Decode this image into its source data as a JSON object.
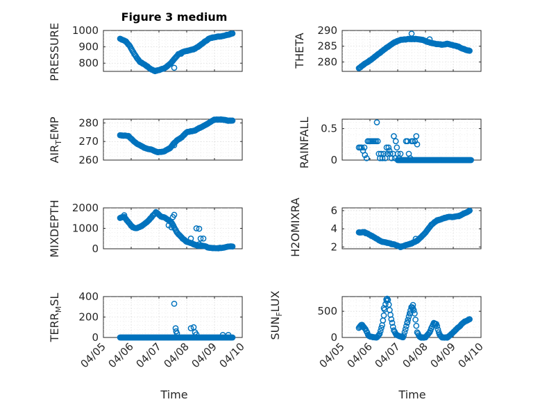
{
  "colors": {
    "marker": "#0072BD",
    "axes": "#262626",
    "grid": "#c8c8c8",
    "background": "#ffffff"
  },
  "chart_data": {
    "type": "scatter",
    "title": "Figure 3 medium",
    "subplot_grid": [
      4,
      2
    ],
    "grid": "on (major and minor, dotted)",
    "marker": "circle",
    "x_axis": {
      "label": "Time",
      "tick_labels": [
        "04/05",
        "04/06",
        "04/07",
        "04/08",
        "04/09",
        "04/10"
      ],
      "tick_values_days": [
        5,
        6,
        7,
        8,
        9,
        10
      ],
      "range_days": [
        5,
        10
      ]
    },
    "panels": [
      {
        "ylabel": "PRESSURE",
        "ylim": [
          750,
          1000
        ],
        "yticks": [
          800,
          900,
          1000
        ],
        "anchors": [
          [
            5.6,
            950
          ],
          [
            5.8,
            935
          ],
          [
            5.95,
            905
          ],
          [
            6.1,
            860
          ],
          [
            6.3,
            810
          ],
          [
            6.5,
            790
          ],
          [
            6.7,
            765
          ],
          [
            6.85,
            752
          ],
          [
            7.0,
            758
          ],
          [
            7.2,
            770
          ],
          [
            7.4,
            795
          ],
          [
            7.55,
            825
          ],
          [
            7.7,
            855
          ],
          [
            7.9,
            870
          ],
          [
            8.1,
            880
          ],
          [
            8.25,
            885
          ],
          [
            8.45,
            905
          ],
          [
            8.6,
            925
          ],
          [
            8.8,
            950
          ],
          [
            9.0,
            960
          ],
          [
            9.25,
            965
          ],
          [
            9.5,
            975
          ],
          [
            9.65,
            983
          ]
        ],
        "outliers": [
          [
            7.55,
            772
          ],
          [
            7.8,
            858
          ]
        ]
      },
      {
        "ylabel": "THETA",
        "ylim": [
          277,
          290
        ],
        "yticks": [
          280,
          285,
          290
        ],
        "anchors": [
          [
            5.6,
            278
          ],
          [
            5.8,
            279.3
          ],
          [
            6.0,
            280.5
          ],
          [
            6.3,
            282.5
          ],
          [
            6.6,
            284.5
          ],
          [
            6.9,
            286.3
          ],
          [
            7.1,
            287
          ],
          [
            7.4,
            287.3
          ],
          [
            7.7,
            287.3
          ],
          [
            7.9,
            287
          ],
          [
            8.1,
            286.3
          ],
          [
            8.35,
            285.8
          ],
          [
            8.6,
            285.5
          ],
          [
            8.8,
            285.8
          ],
          [
            9.0,
            285.3
          ],
          [
            9.2,
            284.8
          ],
          [
            9.4,
            284
          ],
          [
            9.6,
            283.5
          ]
        ],
        "outliers": [
          [
            7.5,
            289
          ],
          [
            8.15,
            287.2
          ]
        ]
      },
      {
        "ylabel": "AIR_TEMP",
        "ylim": [
          260,
          282
        ],
        "yticks": [
          260,
          270,
          280
        ],
        "anchors": [
          [
            5.6,
            273.3
          ],
          [
            5.9,
            273
          ],
          [
            6.1,
            270
          ],
          [
            6.3,
            268
          ],
          [
            6.5,
            266.5
          ],
          [
            6.75,
            265.5
          ],
          [
            6.95,
            264.3
          ],
          [
            7.15,
            264.5
          ],
          [
            7.4,
            266.5
          ],
          [
            7.6,
            270
          ],
          [
            7.8,
            272
          ],
          [
            8.0,
            275
          ],
          [
            8.3,
            276
          ],
          [
            8.55,
            278
          ],
          [
            8.8,
            280
          ],
          [
            9.0,
            281.8
          ],
          [
            9.3,
            281.8
          ],
          [
            9.5,
            281.2
          ],
          [
            9.65,
            281.3
          ]
        ],
        "outliers": [
          [
            7.55,
            268
          ]
        ]
      },
      {
        "ylabel": "RAINFALL",
        "ylim": [
          0,
          0.65
        ],
        "yticks": [
          0,
          0.5
        ],
        "series_samples": [
          [
            5.6,
            0.2
          ],
          [
            5.65,
            0.2
          ],
          [
            5.7,
            0.2
          ],
          [
            5.75,
            0.15
          ],
          [
            5.8,
            0.2
          ],
          [
            5.82,
            0.08
          ],
          [
            5.88,
            0.03
          ],
          [
            5.92,
            0.3
          ],
          [
            5.97,
            0.3
          ],
          [
            6.02,
            0.3
          ],
          [
            6.07,
            0.3
          ],
          [
            6.12,
            0.3
          ],
          [
            6.17,
            0.3
          ],
          [
            6.22,
            0.3
          ],
          [
            6.25,
            0.6
          ],
          [
            6.28,
            0.3
          ],
          [
            6.32,
            0.1
          ],
          [
            6.36,
            0.03
          ],
          [
            6.4,
            0.1
          ],
          [
            6.45,
            0.03
          ],
          [
            6.5,
            0.1
          ],
          [
            6.55,
            0.03
          ],
          [
            6.6,
            0.2
          ],
          [
            6.63,
            0.1
          ],
          [
            6.67,
            0.2
          ],
          [
            6.7,
            0.15
          ],
          [
            6.73,
            0.1
          ],
          [
            6.78,
            0.03
          ],
          [
            6.83,
            0.1
          ],
          [
            6.86,
            0.38
          ],
          [
            6.9,
            0.03
          ],
          [
            6.93,
            0.3
          ],
          [
            6.97,
            0.2
          ],
          [
            7.0,
            0.1
          ],
          [
            7.05,
            0.03
          ],
          [
            7.1,
            0.1
          ],
          [
            7.3,
            0.3
          ],
          [
            7.35,
            0.3
          ],
          [
            7.4,
            0.1
          ],
          [
            7.45,
            0.03
          ],
          [
            7.5,
            0.3
          ],
          [
            7.55,
            0.3
          ],
          [
            7.62,
            0.3
          ],
          [
            7.67,
            0.38
          ],
          [
            7.7,
            0.25
          ]
        ],
        "zero_range": [
          7.0,
          9.65
        ]
      },
      {
        "ylabel": "MIXDEPTH",
        "ylim": [
          0,
          2000
        ],
        "yticks": [
          0,
          1000,
          2000
        ],
        "anchors": [
          [
            5.6,
            1520
          ],
          [
            5.75,
            1560
          ],
          [
            5.9,
            1300
          ],
          [
            6.05,
            1050
          ],
          [
            6.2,
            1000
          ],
          [
            6.4,
            1130
          ],
          [
            6.6,
            1350
          ],
          [
            6.8,
            1650
          ],
          [
            6.9,
            1800
          ],
          [
            7.05,
            1600
          ],
          [
            7.25,
            1500
          ],
          [
            7.45,
            1300
          ],
          [
            7.65,
            800
          ],
          [
            7.85,
            500
          ],
          [
            8.0,
            350
          ],
          [
            8.2,
            250
          ],
          [
            8.4,
            150
          ],
          [
            8.6,
            150
          ],
          [
            8.8,
            50
          ],
          [
            9.05,
            20
          ],
          [
            9.3,
            50
          ],
          [
            9.5,
            120
          ],
          [
            9.65,
            120
          ]
        ],
        "outliers": [
          [
            5.75,
            1640
          ],
          [
            7.35,
            1150
          ],
          [
            7.45,
            1050
          ],
          [
            7.5,
            1550
          ],
          [
            7.55,
            1660
          ],
          [
            8.15,
            500
          ],
          [
            8.35,
            1000
          ],
          [
            8.45,
            980
          ],
          [
            8.5,
            500
          ],
          [
            8.6,
            500
          ],
          [
            8.45,
            220
          ]
        ]
      },
      {
        "ylabel": "H2OMIXRA",
        "ylim": [
          1.8,
          6.3
        ],
        "yticks": [
          2,
          4,
          6
        ],
        "anchors": [
          [
            5.6,
            3.6
          ],
          [
            5.8,
            3.65
          ],
          [
            5.95,
            3.4
          ],
          [
            6.2,
            3.0
          ],
          [
            6.4,
            2.6
          ],
          [
            6.7,
            2.4
          ],
          [
            6.95,
            2.2
          ],
          [
            7.1,
            2.0
          ],
          [
            7.3,
            2.2
          ],
          [
            7.5,
            2.4
          ],
          [
            7.7,
            2.7
          ],
          [
            7.85,
            3.1
          ],
          [
            8.0,
            3.6
          ],
          [
            8.2,
            4.4
          ],
          [
            8.4,
            4.9
          ],
          [
            8.6,
            5.1
          ],
          [
            8.8,
            5.3
          ],
          [
            9.0,
            5.3
          ],
          [
            9.2,
            5.4
          ],
          [
            9.4,
            5.7
          ],
          [
            9.6,
            6.0
          ]
        ],
        "outliers": [
          [
            5.85,
            3.5
          ],
          [
            7.65,
            2.9
          ]
        ]
      },
      {
        "ylabel": "TERR_MSL",
        "ylim": [
          0,
          400
        ],
        "yticks": [
          0,
          200,
          400
        ],
        "zero_range": [
          5.6,
          9.65
        ],
        "outliers": [
          [
            7.55,
            330
          ],
          [
            7.6,
            90
          ],
          [
            7.62,
            60
          ],
          [
            7.65,
            40
          ],
          [
            8.15,
            90
          ],
          [
            8.25,
            100
          ],
          [
            8.3,
            50
          ],
          [
            8.35,
            30
          ],
          [
            9.3,
            25
          ],
          [
            9.5,
            25
          ]
        ]
      },
      {
        "ylabel": "SUN_FLUX",
        "ylim": [
          0,
          780
        ],
        "yticks": [
          0,
          500
        ],
        "anchors": [
          [
            5.6,
            180
          ],
          [
            5.7,
            250
          ],
          [
            5.85,
            150
          ],
          [
            5.95,
            30
          ],
          [
            6.1,
            5
          ],
          [
            6.25,
            0
          ],
          [
            6.35,
            70
          ],
          [
            6.45,
            250
          ],
          [
            6.55,
            600
          ],
          [
            6.6,
            760
          ],
          [
            6.65,
            720
          ],
          [
            6.75,
            400
          ],
          [
            6.85,
            150
          ],
          [
            6.95,
            50
          ],
          [
            7.1,
            20
          ],
          [
            7.2,
            0
          ],
          [
            7.3,
            200
          ],
          [
            7.4,
            400
          ],
          [
            7.5,
            600
          ],
          [
            7.6,
            500
          ],
          [
            7.7,
            100
          ],
          [
            7.8,
            0
          ],
          [
            8.0,
            0
          ],
          [
            8.15,
            100
          ],
          [
            8.3,
            280
          ],
          [
            8.4,
            250
          ],
          [
            8.5,
            60
          ],
          [
            8.6,
            0
          ],
          [
            8.8,
            0
          ],
          [
            9.0,
            100
          ],
          [
            9.2,
            200
          ],
          [
            9.4,
            300
          ],
          [
            9.6,
            350
          ]
        ],
        "outliers": [
          [
            5.75,
            200
          ],
          [
            6.5,
            560
          ],
          [
            6.6,
            700
          ],
          [
            7.35,
            290
          ],
          [
            7.45,
            460
          ],
          [
            7.55,
            620
          ]
        ]
      }
    ]
  },
  "figure": {
    "title": "Figure 3 medium",
    "xlabel": "Time",
    "xtick_labels": [
      "04/05",
      "04/06",
      "04/07",
      "04/08",
      "04/09",
      "04/10"
    ],
    "panel_labels": {
      "p0": {
        "ylabel": "PRESSURE",
        "yticks": [
          "800",
          "900",
          "1000"
        ]
      },
      "p1": {
        "ylabel": "THETA",
        "yticks": [
          "280",
          "285",
          "290"
        ]
      },
      "p2": {
        "ylabel_main": "AIR",
        "ylabel_sub": "T",
        "ylabel_rest": "EMP",
        "yticks": [
          "260",
          "270",
          "280"
        ]
      },
      "p3": {
        "ylabel": "RAINFALL",
        "yticks": [
          "0",
          "0.5"
        ]
      },
      "p4": {
        "ylabel": "MIXDEPTH",
        "yticks": [
          "0",
          "1000",
          "2000"
        ]
      },
      "p5": {
        "ylabel": "H2OMIXRA",
        "yticks": [
          "2",
          "4",
          "6"
        ]
      },
      "p6": {
        "ylabel_main": "TERR",
        "ylabel_sub": "M",
        "ylabel_rest": "SL",
        "yticks": [
          "0",
          "200",
          "400"
        ]
      },
      "p7": {
        "ylabel_main": "SUN",
        "ylabel_sub": "F",
        "ylabel_rest": "LUX",
        "yticks": [
          "0",
          "500"
        ]
      }
    }
  }
}
